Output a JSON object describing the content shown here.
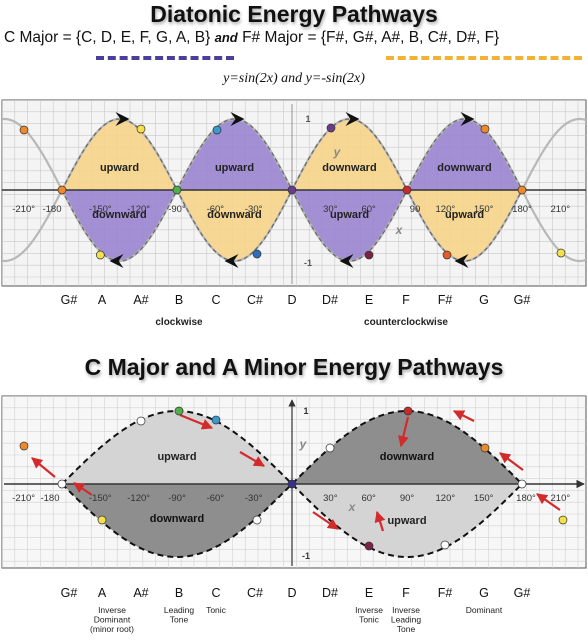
{
  "top": {
    "title": "Diatonic Energy Pathways",
    "c_major_set": "C Major = {C, D, E, F, G, A, B}",
    "and_label": "and",
    "fsharp_major_set": "F# Major = {F#, G#, A#, B, C#, D#, F}",
    "equation_a": "y=sin(2x)",
    "equation_b": "y=-sin(2x)",
    "angle_labels": [
      "-210°",
      "-180",
      "-150°",
      "-120°",
      "-90°",
      "-60°",
      "-30°",
      "30°",
      "60°",
      "90",
      "120°",
      "150°",
      "180°",
      "210°"
    ],
    "axis_y_label": "y",
    "axis_x_label": "x",
    "tick_pos": "1",
    "tick_neg": "-1",
    "lobe_upper_labels": [
      "upward",
      "upward",
      "downward",
      "downward"
    ],
    "lobe_lower_labels": [
      "downward",
      "downward",
      "upward",
      "upward"
    ],
    "notes": [
      "G#",
      "A",
      "A#",
      "B",
      "C",
      "C#",
      "D",
      "D#",
      "E",
      "F",
      "F#",
      "G",
      "G#"
    ],
    "direction_left": "clockwise",
    "direction_right": "counterclockwise",
    "colors": {
      "c_major": "#4b3f9c",
      "fsharp_major": "#f2b233",
      "purple_fill": "#9b86cf",
      "yellow_fill": "#f5d48a"
    }
  },
  "bottom": {
    "title": "C Major and A Minor Energy Pathways",
    "angle_labels": [
      "-210°",
      "-180",
      "-150°",
      "-120°",
      "-90°",
      "-60°",
      "-30°",
      "30°",
      "60°",
      "90°",
      "120°",
      "150°",
      "180°",
      "210°"
    ],
    "axis_y_label": "y",
    "axis_x_label": "x",
    "tick_pos": "1",
    "tick_neg": "-1",
    "lobe_labels": [
      "upward",
      "downward",
      "downward",
      "upward"
    ],
    "notes": [
      "G#",
      "A",
      "A#",
      "B",
      "C",
      "C#",
      "D",
      "D#",
      "E",
      "F",
      "F#",
      "G",
      "G#"
    ],
    "roles": {
      "A": [
        "Inverse",
        "Dominant",
        "(minor root)"
      ],
      "B": [
        "Leading",
        "Tone"
      ],
      "C": [
        "Tonic"
      ],
      "E": [
        "Inverse",
        "Tonic"
      ],
      "F": [
        "Inverse",
        "Leading",
        "Tone"
      ],
      "G": [
        "Dominant"
      ]
    },
    "colors": {
      "light_fill": "#d4d4d4",
      "dark_fill": "#8e8e8e",
      "arrow": "#d22b2b"
    }
  }
}
